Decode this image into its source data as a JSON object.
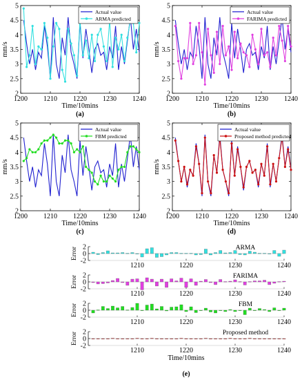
{
  "figure": {
    "panel_labels": [
      "(a)",
      "(b)",
      "(c)",
      "(d)",
      "(e)"
    ],
    "colors": {
      "actual": "#1f1fd0",
      "arma": "#33e0e0",
      "farima": "#e040e0",
      "fbm": "#22dd22",
      "proposed": "#cc1111"
    }
  },
  "chart_data": [
    {
      "type": "line",
      "panel": "(a)",
      "xlabel": "Time/10mins",
      "ylabel": "mm/s",
      "xlim": [
        1200,
        1240
      ],
      "ylim": [
        2,
        5
      ],
      "xticks": [
        1200,
        1210,
        1220,
        1230,
        1240
      ],
      "yticks": [
        2,
        2.5,
        3,
        3.5,
        4,
        4.5,
        5
      ],
      "legend": "top-right",
      "x": [
        1201,
        1202,
        1203,
        1204,
        1205,
        1206,
        1207,
        1208,
        1209,
        1210,
        1211,
        1212,
        1213,
        1214,
        1215,
        1216,
        1217,
        1218,
        1219,
        1220,
        1221,
        1222,
        1223,
        1224,
        1225,
        1226,
        1227,
        1228,
        1229,
        1230,
        1231,
        1232,
        1233,
        1234,
        1235,
        1236,
        1237,
        1238,
        1239,
        1240
      ],
      "series": [
        {
          "name": "Actual value",
          "color": "#1f1fd0",
          "values": [
            4.5,
            3.7,
            3.0,
            3.5,
            2.8,
            3.4,
            3.2,
            4.3,
            3.6,
            2.5,
            4.6,
            3.0,
            2.5,
            3.9,
            3.3,
            4.6,
            3.4,
            3.0,
            2.5,
            4.4,
            3.2,
            4.2,
            3.5,
            2.7,
            3.5,
            3.7,
            3.3,
            3.4,
            2.8,
            3.6,
            3.2,
            4.3,
            2.8,
            3.6,
            3.0,
            3.8,
            4.6,
            3.5,
            4.2,
            3.4
          ]
        },
        {
          "name": "ARMA predicted",
          "color": "#33e0e0",
          "values": [
            4.9,
            2.9,
            3.3,
            4.3,
            3.0,
            3.6,
            3.5,
            4.4,
            3.9,
            2.5,
            3.6,
            4.4,
            4.2,
            2.8,
            2.4,
            4.2,
            3.7,
            3.3,
            2.6,
            4.5,
            3.3,
            3.8,
            3.2,
            4.0,
            3.1,
            4.0,
            4.2,
            3.6,
            3.1,
            4.5,
            2.9,
            3.9,
            3.5,
            4.0,
            3.1,
            3.9,
            4.5,
            4.4,
            3.4,
            4.4
          ]
        }
      ]
    },
    {
      "type": "line",
      "panel": "(b)",
      "xlabel": "Time/10mins",
      "ylabel": "mm/s",
      "xlim": [
        1200,
        1240
      ],
      "ylim": [
        2,
        5
      ],
      "xticks": [
        1200,
        1210,
        1220,
        1230,
        1240
      ],
      "yticks": [
        2,
        2.5,
        3,
        3.5,
        4,
        4.5,
        5
      ],
      "legend": "top-right",
      "x": [
        1201,
        1202,
        1203,
        1204,
        1205,
        1206,
        1207,
        1208,
        1209,
        1210,
        1211,
        1212,
        1213,
        1214,
        1215,
        1216,
        1217,
        1218,
        1219,
        1220,
        1221,
        1222,
        1223,
        1224,
        1225,
        1226,
        1227,
        1228,
        1229,
        1230,
        1231,
        1232,
        1233,
        1234,
        1235,
        1236,
        1237,
        1238,
        1239,
        1240
      ],
      "series": [
        {
          "name": "Actual value",
          "color": "#1f1fd0",
          "values": [
            4.5,
            3.7,
            3.0,
            3.5,
            2.8,
            3.4,
            3.2,
            4.3,
            3.6,
            2.5,
            4.6,
            3.0,
            2.5,
            3.9,
            3.3,
            4.6,
            3.4,
            3.0,
            2.5,
            4.4,
            3.2,
            4.2,
            3.5,
            2.7,
            3.5,
            3.7,
            3.3,
            3.4,
            2.8,
            3.6,
            3.2,
            4.3,
            2.8,
            3.6,
            3.0,
            3.8,
            4.6,
            3.5,
            4.2,
            3.4
          ]
        },
        {
          "name": "FARIMA predicted",
          "color": "#e040e0",
          "values": [
            4.3,
            3.1,
            2.5,
            3.2,
            3.2,
            4.4,
            3.0,
            3.3,
            4.4,
            3.4,
            2.3,
            4.2,
            3.3,
            2.7,
            4.1,
            3.0,
            4.3,
            3.3,
            3.6,
            2.8,
            4.1,
            3.2,
            3.7,
            3.4,
            3.3,
            2.9,
            4.0,
            3.5,
            3.0,
            4.2,
            3.3,
            3.4,
            2.9,
            3.9,
            3.3,
            4.3,
            3.8,
            3.1,
            4.3,
            3.6
          ]
        }
      ]
    },
    {
      "type": "line",
      "panel": "(c)",
      "xlabel": "Time/10mins",
      "ylabel": "mm/s",
      "xlim": [
        1200,
        1240
      ],
      "ylim": [
        2,
        5
      ],
      "xticks": [
        1200,
        1210,
        1220,
        1230,
        1240
      ],
      "yticks": [
        2,
        2.5,
        3,
        3.5,
        4,
        4.5,
        5
      ],
      "legend": "top-right",
      "x": [
        1201,
        1202,
        1203,
        1204,
        1205,
        1206,
        1207,
        1208,
        1209,
        1210,
        1211,
        1212,
        1213,
        1214,
        1215,
        1216,
        1217,
        1218,
        1219,
        1220,
        1221,
        1222,
        1223,
        1224,
        1225,
        1226,
        1227,
        1228,
        1229,
        1230,
        1231,
        1232,
        1233,
        1234,
        1235,
        1236,
        1237,
        1238,
        1239,
        1240
      ],
      "series": [
        {
          "name": "Actual value",
          "color": "#1f1fd0",
          "values": [
            4.5,
            3.7,
            3.0,
            3.5,
            2.8,
            3.4,
            3.2,
            4.3,
            3.6,
            2.5,
            4.6,
            3.0,
            2.5,
            3.9,
            3.3,
            4.6,
            3.4,
            3.0,
            2.5,
            4.4,
            3.2,
            4.2,
            3.5,
            2.7,
            3.5,
            3.7,
            3.3,
            3.4,
            2.8,
            3.6,
            3.2,
            4.3,
            2.8,
            3.6,
            3.0,
            3.8,
            4.6,
            3.5,
            4.2,
            3.4
          ]
        },
        {
          "name": "FBM predicted",
          "color": "#22dd22",
          "values": [
            3.7,
            3.8,
            4.1,
            4.0,
            4.0,
            4.1,
            4.3,
            4.4,
            4.4,
            4.5,
            4.6,
            4.5,
            4.3,
            4.3,
            4.4,
            4.4,
            4.3,
            4.0,
            4.1,
            4.0,
            4.2,
            3.5,
            3.4,
            3.3,
            3.0,
            2.9,
            3.2,
            3.0,
            3.0,
            3.2,
            3.1,
            3.0,
            3.4,
            3.5,
            3.5,
            4.0,
            4.2,
            4.2,
            4.1,
            4.0
          ]
        }
      ]
    },
    {
      "type": "line",
      "panel": "(d)",
      "xlabel": "Time/10mins",
      "ylabel": "mm/s",
      "xlim": [
        1200,
        1240
      ],
      "ylim": [
        2,
        5
      ],
      "xticks": [
        1200,
        1210,
        1220,
        1230,
        1240
      ],
      "yticks": [
        2,
        2.5,
        3,
        3.5,
        4,
        4.5,
        5
      ],
      "legend": "top-right",
      "x": [
        1201,
        1202,
        1203,
        1204,
        1205,
        1206,
        1207,
        1208,
        1209,
        1210,
        1211,
        1212,
        1213,
        1214,
        1215,
        1216,
        1217,
        1218,
        1219,
        1220,
        1221,
        1222,
        1223,
        1224,
        1225,
        1226,
        1227,
        1228,
        1229,
        1230,
        1231,
        1232,
        1233,
        1234,
        1235,
        1236,
        1237,
        1238,
        1239,
        1240
      ],
      "series": [
        {
          "name": "Actual value",
          "color": "#1f1fd0",
          "values": [
            4.5,
            3.7,
            3.0,
            3.5,
            2.8,
            3.4,
            3.2,
            4.3,
            3.6,
            2.5,
            4.6,
            3.0,
            2.5,
            3.9,
            3.3,
            4.6,
            3.4,
            3.0,
            2.5,
            4.4,
            3.2,
            4.2,
            3.5,
            2.7,
            3.5,
            3.7,
            3.3,
            3.4,
            2.8,
            3.6,
            3.2,
            4.3,
            2.8,
            3.6,
            3.0,
            3.8,
            4.6,
            3.5,
            4.2,
            3.4
          ]
        },
        {
          "name": "Proposed method predicted",
          "color": "#cc1111",
          "values": [
            4.4,
            3.7,
            3.0,
            3.5,
            2.9,
            3.4,
            3.2,
            4.2,
            3.6,
            2.6,
            4.5,
            3.0,
            2.6,
            3.9,
            3.3,
            4.5,
            3.4,
            3.0,
            2.6,
            4.3,
            3.2,
            4.1,
            3.5,
            2.8,
            3.5,
            3.7,
            3.3,
            3.4,
            2.9,
            3.6,
            3.2,
            4.2,
            2.9,
            3.6,
            3.0,
            3.8,
            4.5,
            3.5,
            4.1,
            3.4
          ]
        }
      ]
    },
    {
      "type": "bar",
      "panel": "(e)",
      "xlabel": "Time/10mins",
      "ylabel": "Error",
      "xlim": [
        1200,
        1240
      ],
      "ylim": [
        -2,
        2
      ],
      "xticks": [
        1210,
        1220,
        1230,
        1240
      ],
      "yticks": [
        -2,
        0,
        2
      ],
      "x": [
        1201,
        1202,
        1203,
        1204,
        1205,
        1206,
        1207,
        1208,
        1209,
        1210,
        1211,
        1212,
        1213,
        1214,
        1215,
        1216,
        1217,
        1218,
        1219,
        1220,
        1221,
        1222,
        1223,
        1224,
        1225,
        1226,
        1227,
        1228,
        1229,
        1230,
        1231,
        1232,
        1233,
        1234,
        1235,
        1236,
        1237,
        1238,
        1239,
        1240
      ],
      "subplots": [
        {
          "name": "ARMA",
          "color": "#33e0e0",
          "values": [
            0.4,
            -0.3,
            0.3,
            0.8,
            0.2,
            0.2,
            0.3,
            0.1,
            0.3,
            0.0,
            -1.0,
            1.4,
            1.7,
            -1.1,
            -0.9,
            -0.4,
            0.3,
            0.3,
            0.1,
            0.1,
            0.1,
            -0.4,
            -0.3,
            1.3,
            -0.4,
            0.3,
            0.9,
            0.2,
            0.3,
            0.9,
            -0.3,
            -0.4,
            0.7,
            0.4,
            0.1,
            0.1,
            -0.1,
            0.9,
            -0.8,
            1.0
          ]
        },
        {
          "name": "FARIMA",
          "color": "#e040e0",
          "values": [
            -0.2,
            -0.6,
            -0.5,
            -0.3,
            0.4,
            1.0,
            -0.2,
            -1.0,
            0.8,
            0.9,
            -2.3,
            1.2,
            0.8,
            -1.2,
            0.8,
            -1.6,
            0.9,
            0.3,
            1.1,
            -1.6,
            0.9,
            -1.0,
            0.2,
            0.7,
            -0.2,
            -0.8,
            0.7,
            0.1,
            0.2,
            0.6,
            0.1,
            -0.9,
            0.1,
            0.3,
            0.3,
            0.5,
            -0.8,
            -0.4,
            0.1,
            0.2
          ]
        },
        {
          "name": "FBM",
          "color": "#22dd22",
          "values": [
            -0.8,
            0.1,
            1.1,
            0.5,
            1.2,
            0.7,
            1.1,
            0.1,
            0.8,
            2.0,
            0.0,
            1.5,
            1.8,
            0.4,
            1.1,
            -0.2,
            0.9,
            1.0,
            1.6,
            -0.4,
            1.0,
            -0.7,
            -0.1,
            0.6,
            -0.5,
            -0.8,
            -0.1,
            -0.4,
            0.2,
            -0.4,
            -0.1,
            -1.3,
            0.6,
            -0.1,
            0.5,
            0.2,
            -0.4,
            0.7,
            -0.1,
            0.6
          ]
        },
        {
          "name": "Proposed method",
          "color": "#cc1111",
          "values": [
            -0.1,
            0.0,
            0.0,
            0.0,
            0.1,
            0.0,
            0.0,
            -0.1,
            0.0,
            0.1,
            -0.1,
            0.0,
            0.1,
            0.0,
            0.0,
            -0.1,
            0.0,
            0.0,
            0.1,
            -0.1,
            0.0,
            -0.1,
            0.0,
            0.1,
            0.0,
            0.0,
            0.0,
            0.0,
            0.1,
            0.0,
            0.0,
            -0.1,
            0.1,
            0.0,
            0.0,
            0.0,
            -0.1,
            0.0,
            -0.1,
            0.0
          ]
        }
      ]
    }
  ]
}
